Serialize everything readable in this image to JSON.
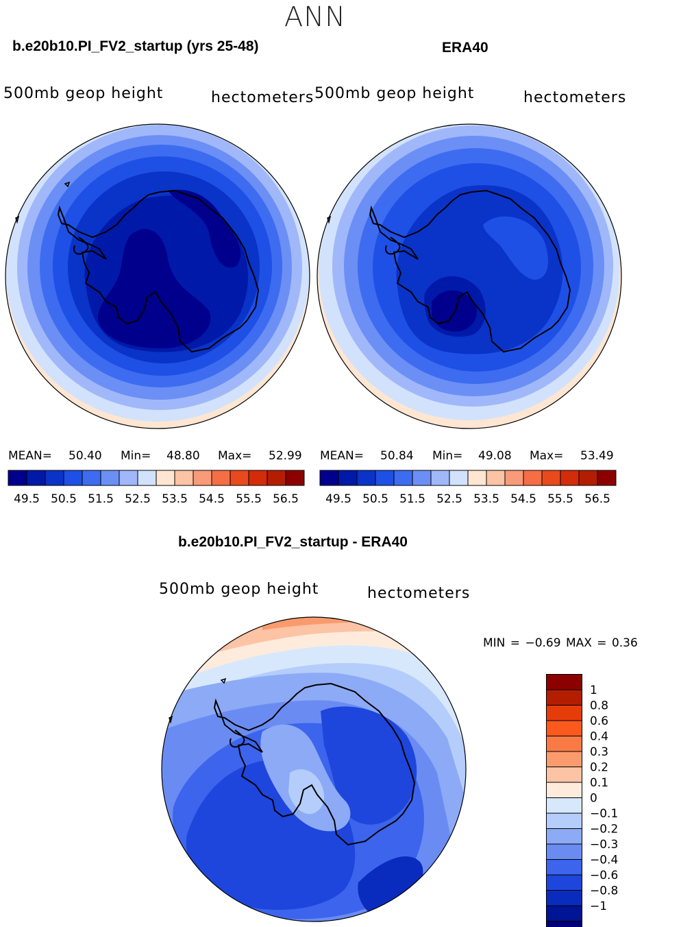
{
  "main_title": "ANN",
  "panel_left": {
    "title": "b.e20b10.PI_FV2_startup (yrs 25-48)",
    "variable": "500mb  geop  height",
    "units": "hectometers",
    "mean_label": "MEAN=",
    "mean": "50.40",
    "min_label": "Min=",
    "min": "48.80",
    "max_label": "Max=",
    "max": "52.99"
  },
  "panel_right": {
    "title": "ERA40",
    "variable": "500mb  geop  height",
    "units": "hectometers",
    "mean_label": "MEAN=",
    "mean": "50.84",
    "min_label": "Min=",
    "min": "49.08",
    "max_label": "Max=",
    "max": "53.49"
  },
  "panel_diff": {
    "title": "b.e20b10.PI_FV2_startup - ERA40",
    "variable": "500mb  geop  height",
    "units": "hectometers",
    "minmax_text": "MIN =   −0.69  MAX =    0.36"
  },
  "colorbar_main": {
    "colors": [
      "#00008c",
      "#0019a8",
      "#0a33c8",
      "#1e50e6",
      "#3d6cf0",
      "#6b8ff5",
      "#a0b8fa",
      "#d2e2fc",
      "#ffe6d2",
      "#fcc3a5",
      "#f99b78",
      "#f56e46",
      "#e84a1e",
      "#d32c0a",
      "#b41e00",
      "#8c0000"
    ],
    "tick_labels": [
      "49.5",
      "50.5",
      "51.5",
      "52.5",
      "53.5",
      "54.5",
      "55.5",
      "56.5"
    ]
  },
  "colorbar_diff": {
    "colors": [
      "#8c0000",
      "#b41e00",
      "#e63c0a",
      "#fa5a1e",
      "#fa7a46",
      "#fa9b6e",
      "#fcc3a5",
      "#ffebdc",
      "#d8e8fc",
      "#b4cdfa",
      "#8caaf5",
      "#6a8cf2",
      "#3c64ec",
      "#1e46dc",
      "#0a2cbe",
      "#001496",
      "#000078"
    ],
    "labels": [
      "1",
      "0.8",
      "0.6",
      "0.4",
      "0.3",
      "0.2",
      "0.1",
      "0",
      "−0.1",
      "−0.2",
      "−0.3",
      "−0.4",
      "−0.6",
      "−0.8",
      "−1"
    ]
  },
  "chart_data": [
    {
      "type": "heatmap",
      "title": "b.e20b10.PI_FV2_startup (yrs 25-48)",
      "description_variable": "500mb geop height",
      "units": "hectometers",
      "mean": 50.4,
      "min": 48.8,
      "max": 52.99,
      "levels": [
        49.5,
        50.5,
        51.5,
        52.5,
        53.5,
        54.5,
        55.5,
        56.5
      ]
    },
    {
      "type": "heatmap",
      "title": "ERA40",
      "units": "hectometers",
      "mean": 50.84,
      "min": 49.08,
      "max": 53.49,
      "levels": [
        49.5,
        50.5,
        51.5,
        52.5,
        53.5,
        54.5,
        55.5,
        56.5
      ]
    },
    {
      "type": "heatmap",
      "title": "b.e20b10.PI_FV2_startup - ERA40",
      "units": "hectometers",
      "min": -0.69,
      "max": 0.36,
      "levels": [
        1,
        0.8,
        0.6,
        0.4,
        0.3,
        0.2,
        0.1,
        0,
        -0.1,
        -0.2,
        -0.3,
        -0.4,
        -0.6,
        -0.8,
        -1
      ]
    }
  ]
}
